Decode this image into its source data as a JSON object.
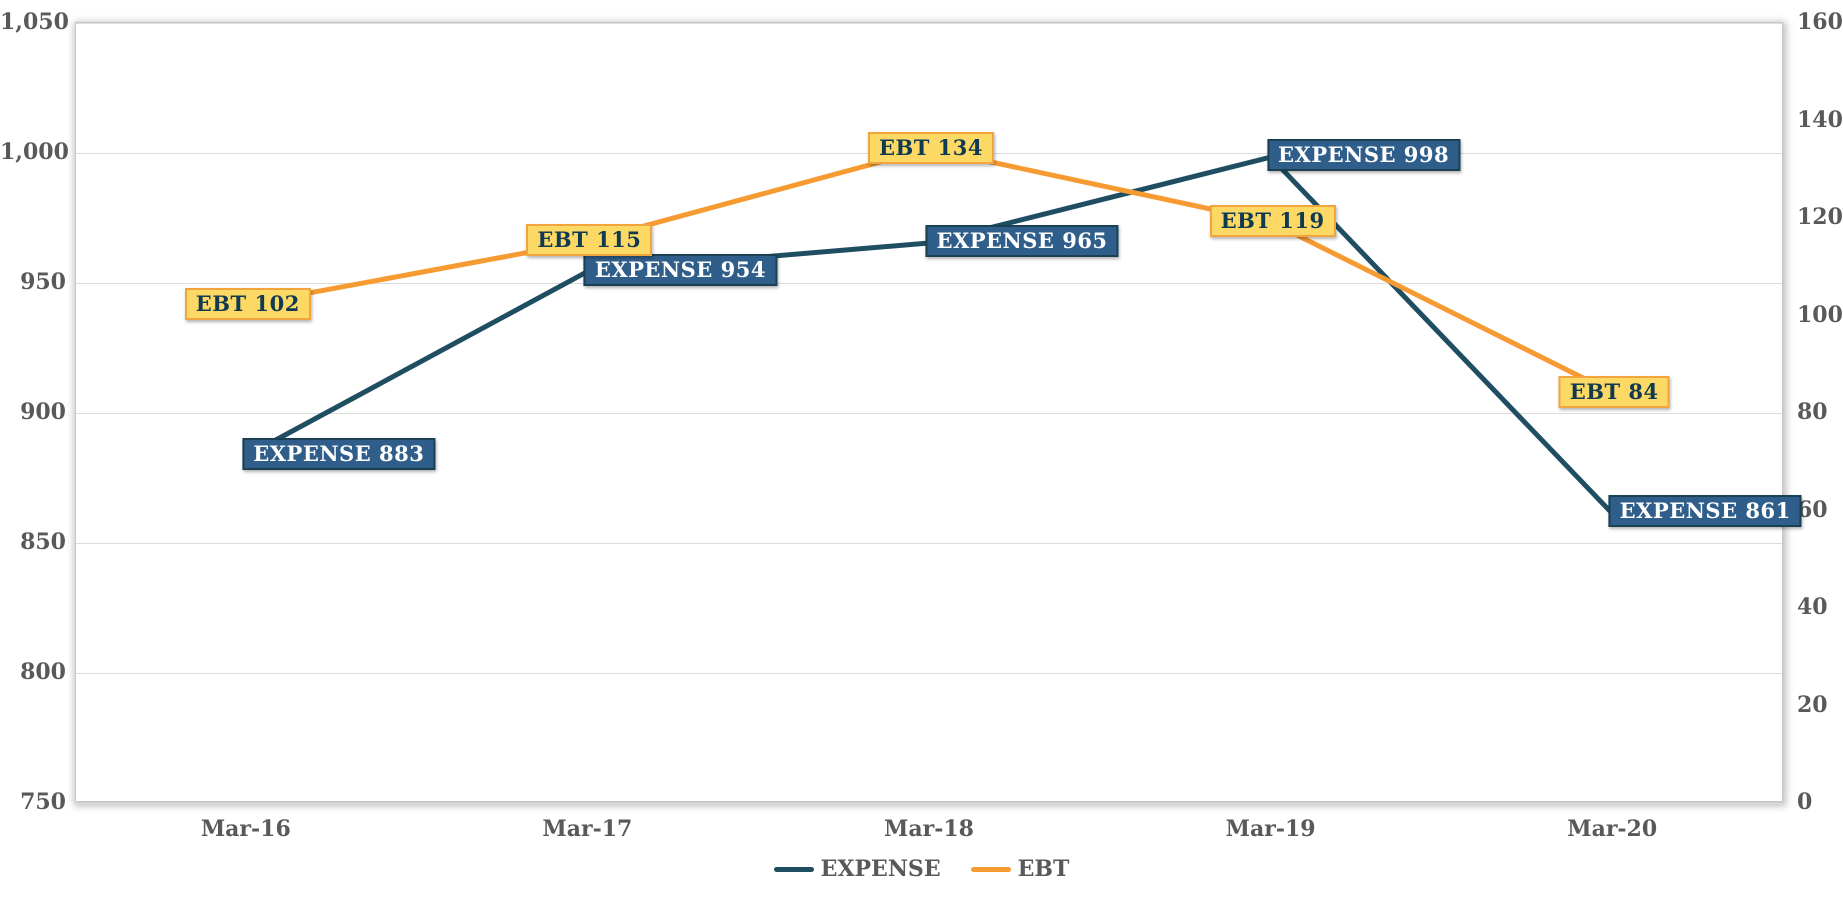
{
  "chart_data": {
    "type": "line",
    "categories": [
      "Mar-16",
      "Mar-17",
      "Mar-18",
      "Mar-19",
      "Mar-20"
    ],
    "series": [
      {
        "name": "EXPENSE",
        "axis": "left",
        "values": [
          883,
          954,
          965,
          998,
          861
        ],
        "point_labels": [
          "EXPENSE 883",
          "EXPENSE 954",
          "EXPENSE 965",
          "EXPENSE 998",
          "EXPENSE 861"
        ],
        "color": "#1f4e63",
        "label_bg": "#305e8b",
        "label_border": "#1b4053",
        "label_text_color": "#ffffff"
      },
      {
        "name": "EBT",
        "axis": "right",
        "values": [
          102,
          115,
          134,
          119,
          84
        ],
        "point_labels": [
          "EBT 102",
          "EBT 115",
          "EBT 134",
          "EBT 119",
          "EBT 84"
        ],
        "color": "#f69b31",
        "label_bg": "#fcd964",
        "label_border": "#f1a53c",
        "label_text_color": "#103a52"
      }
    ],
    "left_axis": {
      "min": 750,
      "max": 1050,
      "step": 50,
      "tick_labels": [
        "1,050",
        "1,000",
        "950",
        "900",
        "850",
        "800",
        "750"
      ]
    },
    "right_axis": {
      "min": 0,
      "max": 160,
      "step": 20,
      "tick_labels": [
        "160",
        "140",
        "120",
        "100",
        "80",
        "60",
        "40",
        "20",
        "0"
      ]
    },
    "grid": true,
    "legend_position": "bottom",
    "legend": [
      "EXPENSE",
      "EBT"
    ]
  },
  "colors": {
    "axis_text": "#595959",
    "gridline": "#dddddd",
    "plot_border": "#c9c7c7",
    "background": "#ffffff"
  }
}
